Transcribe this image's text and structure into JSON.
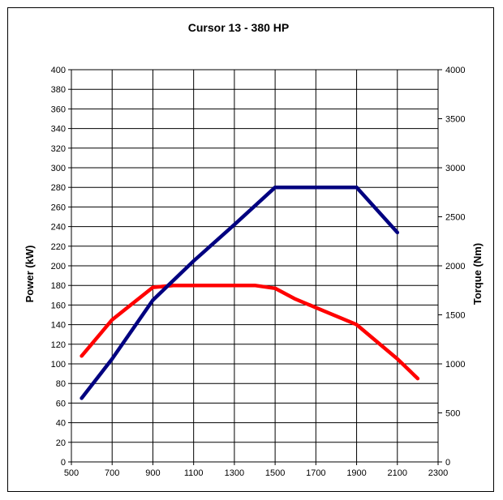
{
  "chart_data": {
    "type": "line",
    "title": "Cursor 13 - 380 HP",
    "xlabel": "",
    "ylabel": "Power (kW)",
    "y2label": "Torque (Nm)",
    "xlim": [
      500,
      2300
    ],
    "ylim": [
      0,
      400
    ],
    "y2lim": [
      0,
      4000
    ],
    "xticks": [
      500,
      700,
      900,
      1100,
      1300,
      1500,
      1700,
      1900,
      2100,
      2300
    ],
    "yticks": [
      0,
      20,
      40,
      60,
      80,
      100,
      120,
      140,
      160,
      180,
      200,
      220,
      240,
      260,
      280,
      300,
      320,
      340,
      360,
      380,
      400
    ],
    "y2ticks": [
      0,
      500,
      1000,
      1500,
      2000,
      2500,
      3000,
      3500,
      4000
    ],
    "grid": true,
    "legend": "none",
    "series": [
      {
        "axis": "left",
        "color": "#ff0000",
        "points": [
          [
            550,
            108
          ],
          [
            700,
            145
          ],
          [
            900,
            178
          ],
          [
            1000,
            180
          ],
          [
            1400,
            180
          ],
          [
            1500,
            177
          ],
          [
            1600,
            166
          ],
          [
            1900,
            140
          ],
          [
            2100,
            105
          ],
          [
            2200,
            85
          ]
        ]
      },
      {
        "axis": "right",
        "color": "#000080",
        "points": [
          [
            550,
            650
          ],
          [
            700,
            1050
          ],
          [
            900,
            1650
          ],
          [
            1100,
            2050
          ],
          [
            1300,
            2420
          ],
          [
            1500,
            2800
          ],
          [
            1900,
            2800
          ],
          [
            2100,
            2340
          ]
        ]
      }
    ]
  }
}
